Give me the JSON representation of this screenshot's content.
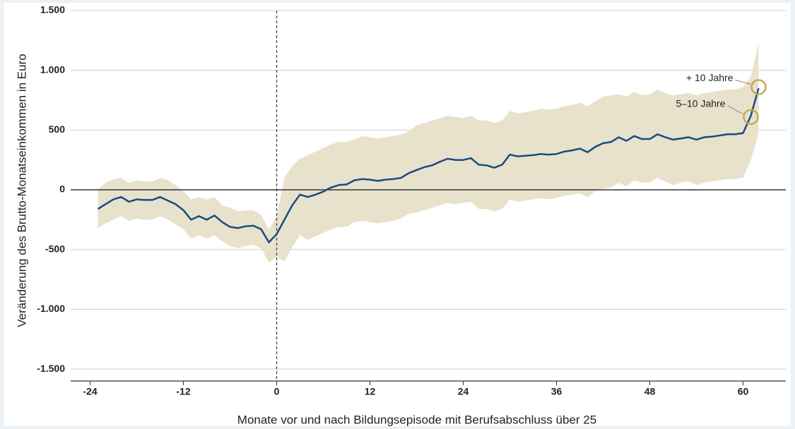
{
  "chart_data": {
    "type": "line",
    "y_label": "Veränderung des Brutto-Monatseinkommen in Euro",
    "x_label": "Monate vor und nach Bildungsepisode mit Berufsabschluss über 25",
    "x": [
      -23,
      -22,
      -21,
      -20,
      -19,
      -18,
      -17,
      -16,
      -15,
      -14,
      -13,
      -12,
      -11,
      -10,
      -9,
      -8,
      -7,
      -6,
      -5,
      -4,
      -3,
      -2,
      -1,
      0,
      1,
      2,
      3,
      4,
      5,
      6,
      7,
      8,
      9,
      10,
      11,
      12,
      13,
      14,
      15,
      16,
      17,
      18,
      19,
      20,
      21,
      22,
      23,
      24,
      25,
      26,
      27,
      28,
      29,
      30,
      31,
      32,
      33,
      34,
      35,
      36,
      37,
      38,
      39,
      40,
      41,
      42,
      43,
      44,
      45,
      46,
      47,
      48,
      49,
      50,
      51,
      52,
      53,
      54,
      55,
      56,
      57,
      58,
      59,
      60,
      61,
      62
    ],
    "series": [
      {
        "color": "#1a4a80",
        "values": [
          -160,
          -120,
          -80,
          -60,
          -100,
          -80,
          -85,
          -85,
          -60,
          -90,
          -120,
          -170,
          -250,
          -220,
          -250,
          -215,
          -270,
          -310,
          -320,
          -305,
          -300,
          -330,
          -440,
          -370,
          -250,
          -130,
          -40,
          -60,
          -40,
          -15,
          20,
          40,
          45,
          80,
          90,
          85,
          75,
          85,
          90,
          100,
          140,
          165,
          190,
          205,
          235,
          260,
          250,
          250,
          265,
          210,
          205,
          185,
          210,
          295,
          280,
          285,
          290,
          300,
          295,
          300,
          320,
          330,
          345,
          315,
          360,
          390,
          400,
          440,
          410,
          450,
          425,
          425,
          465,
          440,
          420,
          430,
          440,
          420,
          440,
          445,
          455,
          465,
          465,
          475,
          620,
          850
        ]
      }
    ],
    "band": {
      "color": "#e8e2cc",
      "upper": [
        0,
        60,
        90,
        100,
        60,
        80,
        70,
        70,
        100,
        80,
        40,
        -10,
        -80,
        -60,
        -80,
        -60,
        -130,
        -150,
        -180,
        -170,
        -170,
        -210,
        -330,
        -220,
        100,
        200,
        260,
        290,
        320,
        350,
        380,
        400,
        400,
        420,
        450,
        440,
        430,
        440,
        450,
        460,
        490,
        540,
        560,
        580,
        600,
        620,
        610,
        600,
        620,
        580,
        580,
        560,
        580,
        660,
        640,
        650,
        660,
        680,
        670,
        680,
        700,
        710,
        730,
        700,
        740,
        780,
        790,
        800,
        780,
        820,
        790,
        800,
        840,
        810,
        790,
        800,
        810,
        790,
        810,
        820,
        830,
        840,
        840,
        860,
        950,
        1230
      ],
      "lower": [
        -320,
        -280,
        -250,
        -220,
        -260,
        -240,
        -250,
        -250,
        -220,
        -250,
        -290,
        -330,
        -410,
        -380,
        -410,
        -380,
        -430,
        -470,
        -490,
        -470,
        -460,
        -490,
        -610,
        -560,
        -600,
        -480,
        -380,
        -420,
        -390,
        -360,
        -330,
        -310,
        -310,
        -270,
        -260,
        -270,
        -280,
        -270,
        -260,
        -240,
        -200,
        -190,
        -170,
        -150,
        -130,
        -110,
        -120,
        -110,
        -100,
        -160,
        -160,
        -180,
        -160,
        -80,
        -100,
        -90,
        -80,
        -70,
        -80,
        -70,
        -50,
        -40,
        -30,
        -60,
        -10,
        10,
        20,
        60,
        30,
        80,
        60,
        60,
        100,
        70,
        40,
        60,
        70,
        40,
        60,
        70,
        80,
        90,
        90,
        100,
        250,
        470
      ]
    },
    "xlim": [
      -26.5,
      65.5
    ],
    "ylim": [
      -1600,
      1500
    ],
    "xticks": [
      -24,
      -12,
      0,
      12,
      24,
      36,
      48,
      60
    ],
    "yticks": [
      {
        "value": 1500,
        "label": "1.500"
      },
      {
        "value": 1000,
        "label": "1.000"
      },
      500,
      0,
      -500,
      {
        "value": -1000,
        "label": "-1.000"
      },
      {
        "value": -1500,
        "label": "-1.500"
      }
    ],
    "grid": true,
    "vline": 0,
    "hline": 0,
    "annotations": [
      {
        "text": "+ 10 Jahre",
        "x": 62,
        "y": 860
      },
      {
        "text": "5–10 Jahre",
        "x": 61,
        "y": 610
      }
    ],
    "annotation_color": "#c9a856"
  }
}
